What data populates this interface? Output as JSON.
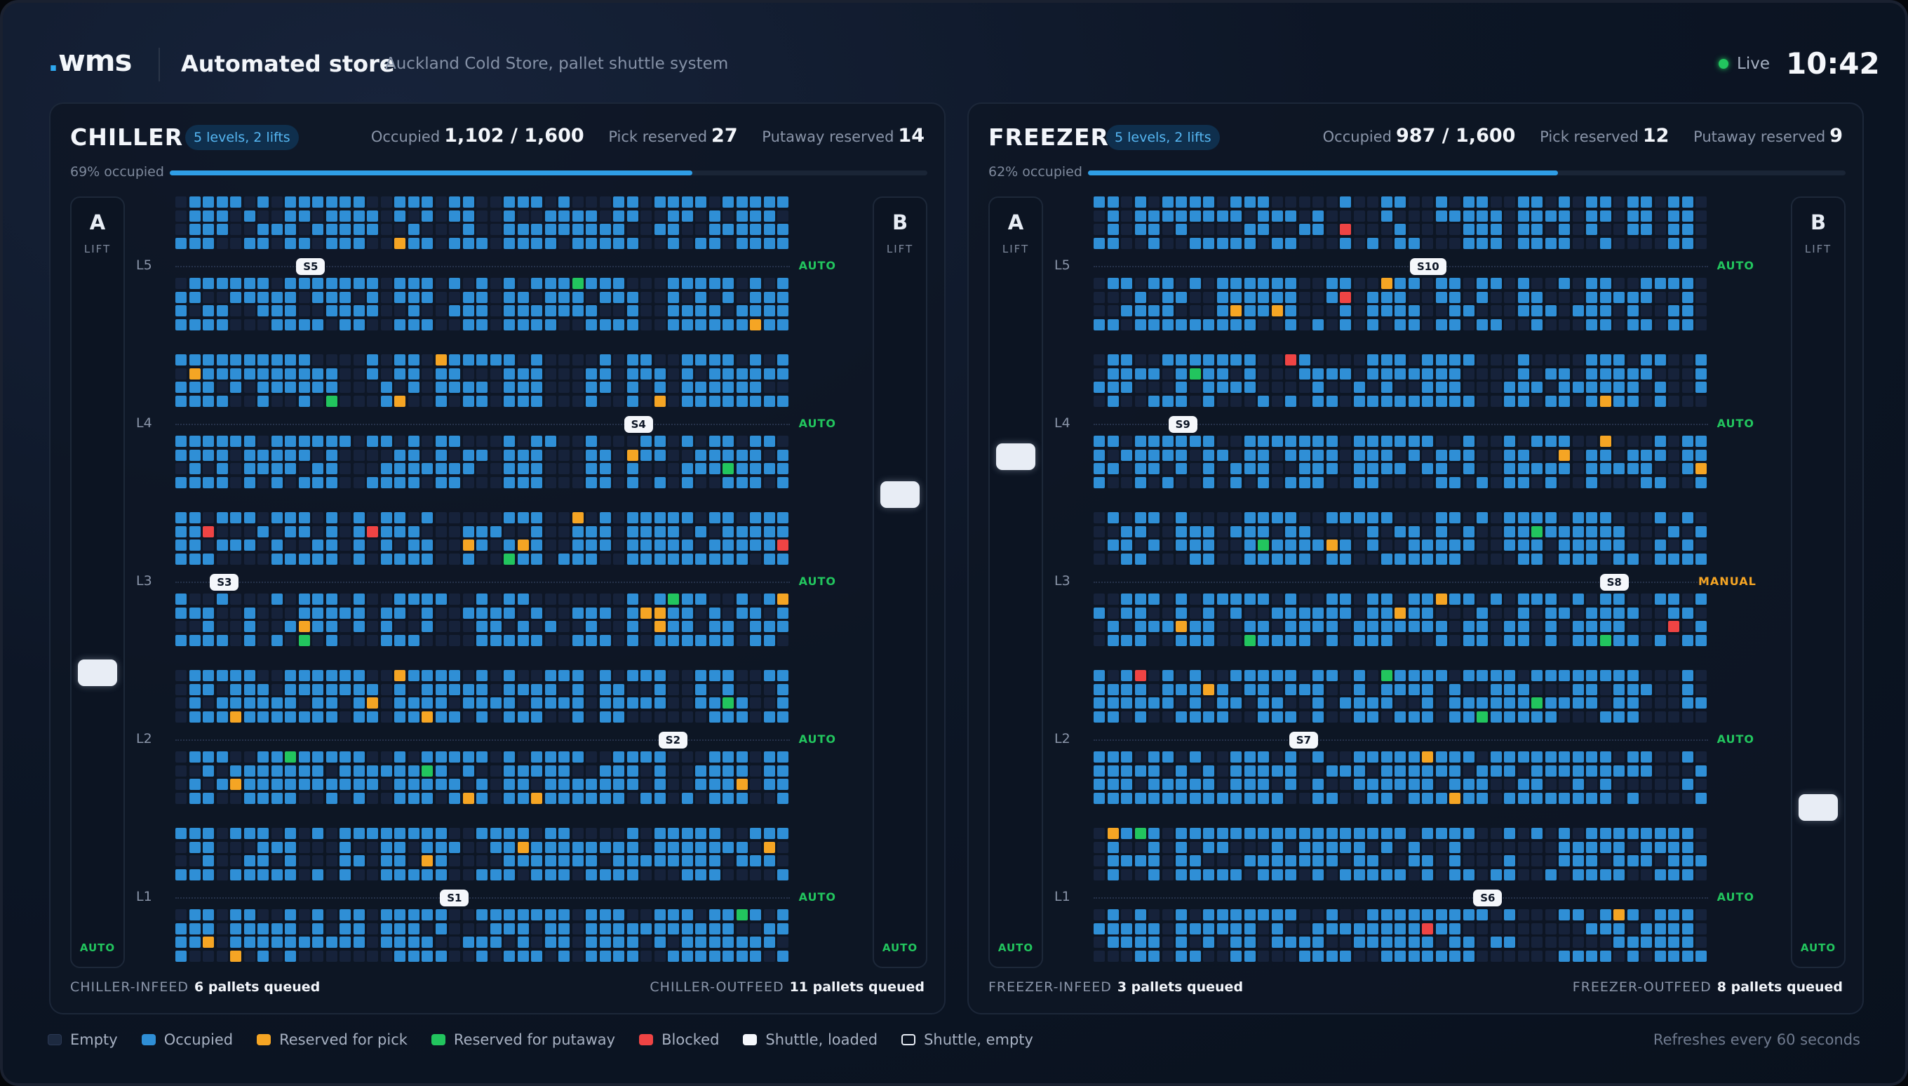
{
  "header": {
    "logo": ".wms",
    "title": "Automated store",
    "subtitle": "Auckland Cold Store, pallet shuttle system",
    "live_label": "Live",
    "clock": "10:42"
  },
  "colors": {
    "empty": "#16223a",
    "occupied": "#2f8fd6",
    "reserved_pick": "#f5a524",
    "reserved_putaway": "#22c55e",
    "blocked": "#ef4444",
    "accent": "#2ea8f0"
  },
  "zones": [
    {
      "name": "CHILLER",
      "badge": "5 levels, 2 lifts",
      "occupied_label": "Occupied",
      "occupied_value": "1,102 / 1,600",
      "pick_label": "Pick reserved",
      "pick_value": "27",
      "putaway_label": "Putaway reserved",
      "putaway_value": "14",
      "occupancy_text": "69% occupied",
      "occupancy": 0.69,
      "lift_a": {
        "letter": "A",
        "sub": "LIFT",
        "mode": "AUTO",
        "position": 0.62
      },
      "lift_b": {
        "letter": "B",
        "sub": "LIFT",
        "mode": "AUTO",
        "position": 0.38
      },
      "levels": [
        {
          "label": "L5",
          "mode": "AUTO",
          "shuttle": "S5",
          "shuttle_pos": 0.21
        },
        {
          "label": "L4",
          "mode": "AUTO",
          "shuttle": "S4",
          "shuttle_pos": 0.78
        },
        {
          "label": "L3",
          "mode": "AUTO",
          "shuttle": "S3",
          "shuttle_pos": 0.06
        },
        {
          "label": "L2",
          "mode": "AUTO",
          "shuttle": "S2",
          "shuttle_pos": 0.84
        },
        {
          "label": "L1",
          "mode": "AUTO",
          "shuttle": "S1",
          "shuttle_pos": 0.46
        }
      ],
      "infeed_label": "CHILLER-INFEED",
      "infeed_value": "6 pallets queued",
      "outfeed_label": "CHILLER-OUTFEED",
      "outfeed_value": "11 pallets queued"
    },
    {
      "name": "FREEZER",
      "badge": "5 levels, 2 lifts",
      "occupied_label": "Occupied",
      "occupied_value": "987 / 1,600",
      "pick_label": "Pick reserved",
      "pick_value": "12",
      "putaway_label": "Putaway reserved",
      "putaway_value": "9",
      "occupancy_text": "62% occupied",
      "occupancy": 0.62,
      "lift_a": {
        "letter": "A",
        "sub": "LIFT",
        "mode": "AUTO",
        "position": 0.33
      },
      "lift_b": {
        "letter": "B",
        "sub": "LIFT",
        "mode": "AUTO",
        "position": 0.8
      },
      "levels": [
        {
          "label": "L5",
          "mode": "AUTO",
          "shuttle": "S10",
          "shuttle_pos": 0.55
        },
        {
          "label": "L4",
          "mode": "AUTO",
          "shuttle": "S9",
          "shuttle_pos": 0.13
        },
        {
          "label": "L3",
          "mode": "MANUAL",
          "shuttle": "S8",
          "shuttle_pos": 0.88
        },
        {
          "label": "L2",
          "mode": "AUTO",
          "shuttle": "S7",
          "shuttle_pos": 0.34
        },
        {
          "label": "L1",
          "mode": "AUTO",
          "shuttle": "S6",
          "shuttle_pos": 0.66
        }
      ],
      "infeed_label": "FREEZER-INFEED",
      "infeed_value": "3 pallets queued",
      "outfeed_label": "FREEZER-OUTFEED",
      "outfeed_value": "8 pallets queued"
    }
  ],
  "legend": [
    {
      "label": "Empty",
      "kind": "empty"
    },
    {
      "label": "Occupied",
      "kind": "occupied"
    },
    {
      "label": "Reserved for pick",
      "kind": "pick"
    },
    {
      "label": "Reserved for putaway",
      "kind": "putaway"
    },
    {
      "label": "Blocked",
      "kind": "blocked"
    },
    {
      "label": "Shuttle, loaded",
      "kind": "shuttle-loaded"
    },
    {
      "label": "Shuttle, empty",
      "kind": "shuttle-empty"
    }
  ],
  "refresh_text": "Refreshes every 60 seconds"
}
